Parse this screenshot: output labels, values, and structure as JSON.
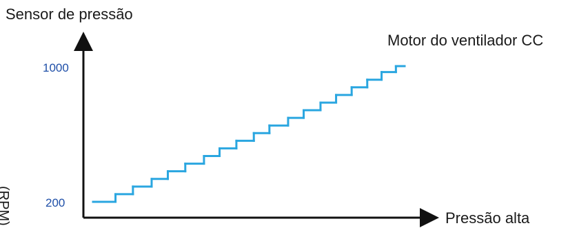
{
  "chart_data": {
    "type": "line",
    "title": "",
    "ylabel": "Sensor de pressão",
    "yunit": "(RPM)",
    "xlabel": "Pressão alta",
    "legend": "top-right",
    "grid": false,
    "ylim": [
      200,
      1000
    ],
    "yticks": [
      "1000",
      "200"
    ],
    "series": [
      {
        "name": "Motor do ventilador CC",
        "color": "#2aa6e0",
        "step_values": [
          200,
          245,
          290,
          335,
          380,
          425,
          470,
          515,
          560,
          605,
          650,
          695,
          740,
          785,
          830,
          875,
          920,
          965,
          1000
        ],
        "step_starts": [
          0,
          0.072,
          0.128,
          0.188,
          0.24,
          0.296,
          0.356,
          0.406,
          0.46,
          0.516,
          0.566,
          0.626,
          0.676,
          0.73,
          0.78,
          0.83,
          0.88,
          0.926,
          0.972
        ]
      }
    ]
  }
}
